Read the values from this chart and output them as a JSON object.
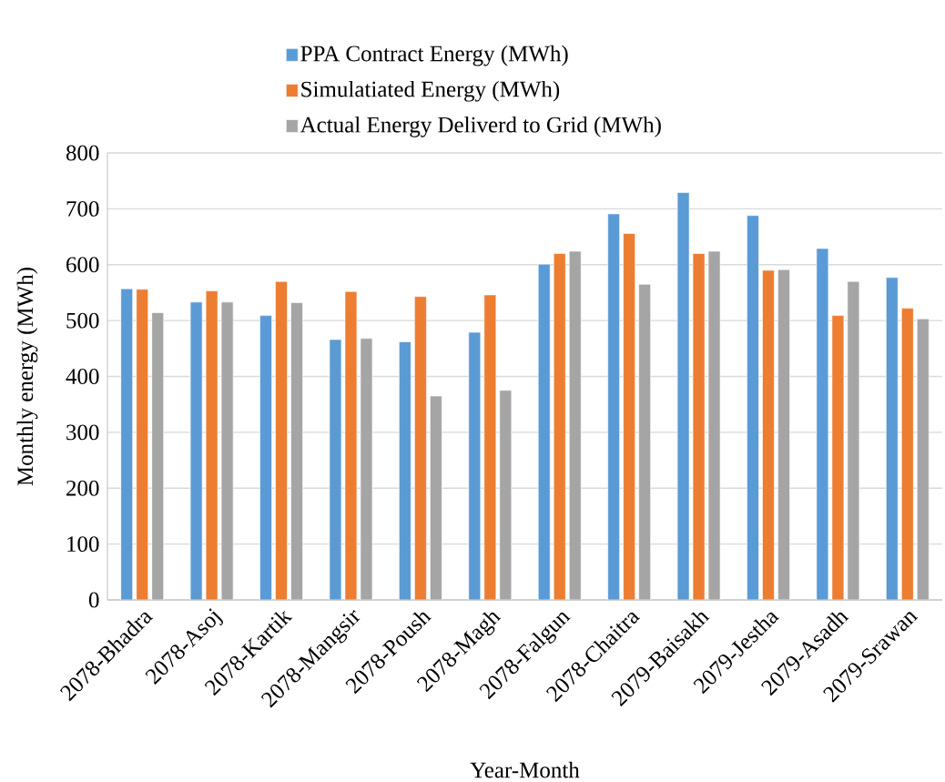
{
  "chart_data": {
    "type": "bar",
    "xlabel": "Year-Month",
    "ylabel": "Monthly energy (MWh)",
    "categories": [
      "2078-Bhadra",
      "2078-Asoj",
      "2078-Kartik",
      "2078-Mangsir",
      "2078-Poush",
      "2078-Magh",
      "2078-Falgun",
      "2078-Chaitra",
      "2079-Baisakh",
      "2079-Jestha",
      "2079-Asadh",
      "2079-Srawan"
    ],
    "series": [
      {
        "name": "PPA Contract Energy (MWh)",
        "color": "#5b9bd5",
        "values": [
          557,
          533,
          509,
          466,
          462,
          479,
          601,
          691,
          729,
          688,
          629,
          577
        ]
      },
      {
        "name": "Simulatiated Energy (MWh)",
        "color": "#ed7d31",
        "values": [
          556,
          553,
          570,
          552,
          543,
          546,
          620,
          656,
          620,
          590,
          509,
          522
        ]
      },
      {
        "name": "Actual Energy Deliverd to Grid (MWh)",
        "color": "#a5a5a5",
        "values": [
          514,
          533,
          532,
          468,
          365,
          375,
          624,
          565,
          624,
          591,
          570,
          503
        ]
      }
    ],
    "ylim": [
      0,
      800
    ],
    "yticks": [
      0,
      100,
      200,
      300,
      400,
      500,
      600,
      700,
      800
    ],
    "grid": "y",
    "legend": "top"
  }
}
